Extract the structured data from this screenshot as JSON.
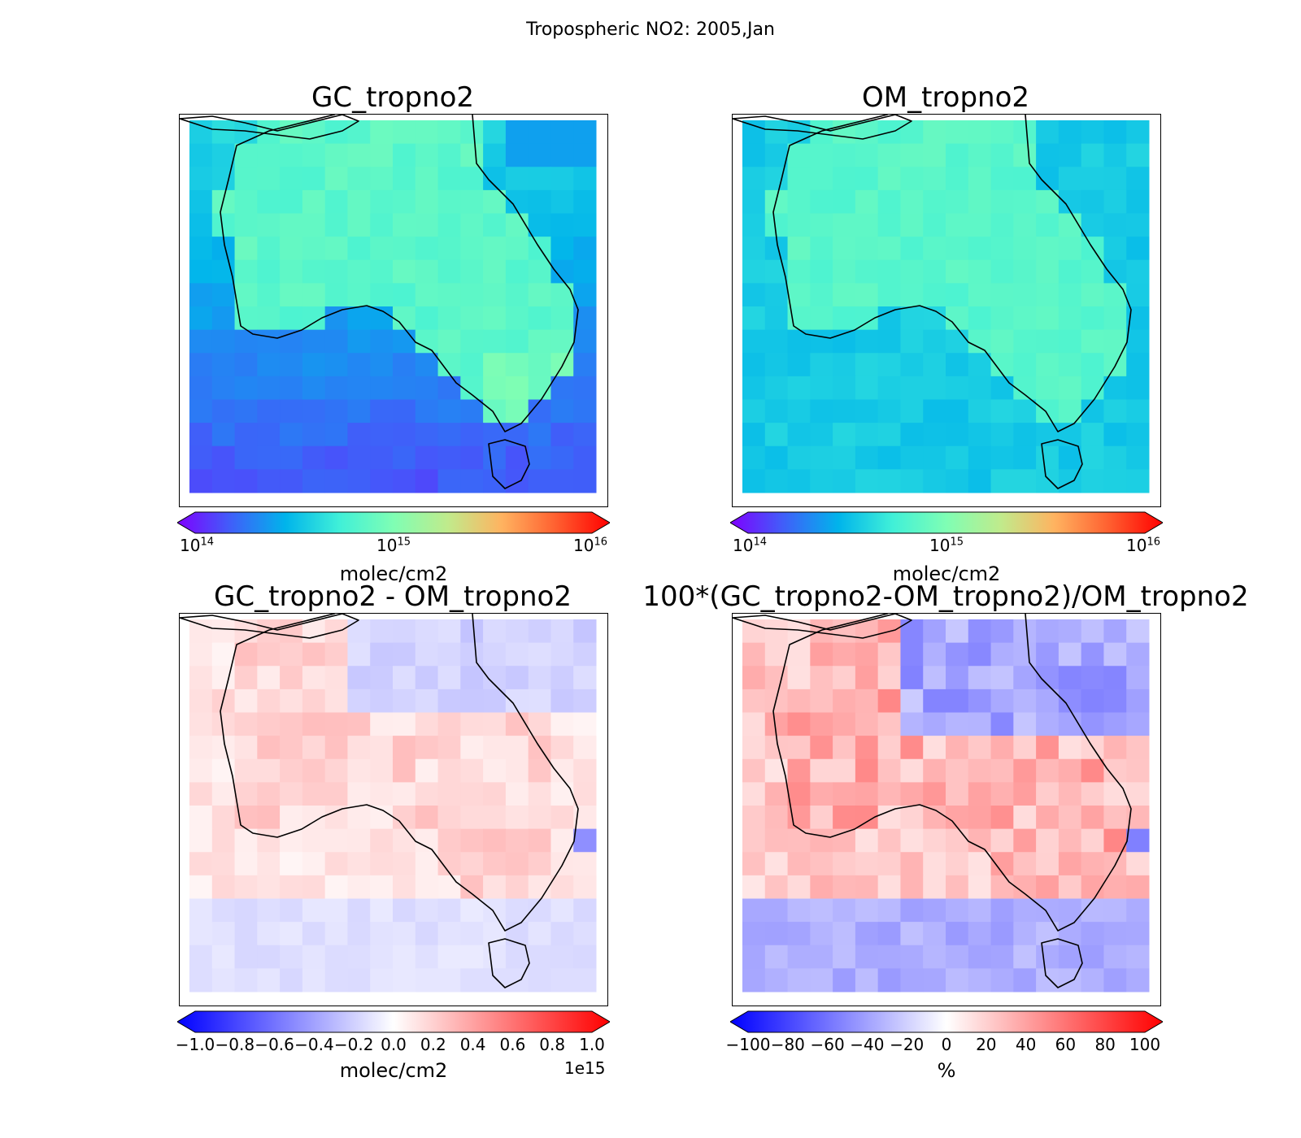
{
  "figure": {
    "suptitle": "Tropospheric NO2: 2005,Jan"
  },
  "colors": {
    "land_outline": "#000000",
    "frame": "#000000",
    "rainbow": [
      "#7f00ff",
      "#3f60f9",
      "#00b4eb",
      "#40f0d8",
      "#7ffeb4",
      "#c0eb8c",
      "#ffb360",
      "#ff6030",
      "#ff0000"
    ],
    "diverging": [
      "#0000ff",
      "#8080ff",
      "#ffffff",
      "#ff8080",
      "#ff0000"
    ]
  },
  "panels": {
    "gc": {
      "title": "GC_tropno2",
      "colorbar": {
        "scale": "log",
        "ticks": [
          {
            "base": "10",
            "exp": "14"
          },
          {
            "base": "10",
            "exp": "15"
          },
          {
            "base": "10",
            "exp": "16"
          }
        ],
        "label": "molec/cm2"
      }
    },
    "om": {
      "title": "OM_tropno2",
      "colorbar": {
        "scale": "log",
        "ticks": [
          {
            "base": "10",
            "exp": "14"
          },
          {
            "base": "10",
            "exp": "15"
          },
          {
            "base": "10",
            "exp": "16"
          }
        ],
        "label": "molec/cm2"
      }
    },
    "diff": {
      "title": "GC_tropno2 - OM_tropno2",
      "colorbar": {
        "scale": "linear",
        "ticks": [
          "−1.0",
          "−0.8",
          "−0.6",
          "−0.4",
          "−0.2",
          "0.0",
          "0.2",
          "0.4",
          "0.6",
          "0.8",
          "1.0"
        ],
        "label": "molec/cm2",
        "offset": "1e15"
      }
    },
    "pct": {
      "title": "100*(GC_tropno2-OM_tropno2)/OM_tropno2",
      "colorbar": {
        "scale": "linear",
        "ticks": [
          "−100",
          "−80",
          "−60",
          "−40",
          "−20",
          "0",
          "20",
          "40",
          "60",
          "80",
          "100"
        ],
        "label": "%"
      }
    }
  }
}
